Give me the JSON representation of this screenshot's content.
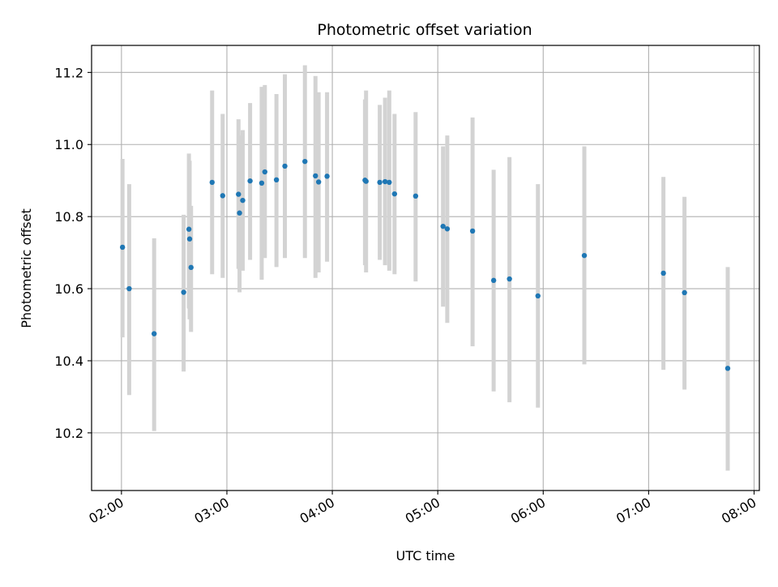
{
  "chart_data": {
    "type": "scatter",
    "title": "Photometric offset variation",
    "xlabel": "UTC time",
    "ylabel": "Photometric offset",
    "x_unit": "UTC time",
    "xlim": [
      "01:43",
      "08:03"
    ],
    "ylim": [
      10.04,
      11.275
    ],
    "grid": true,
    "marker_color": "#1f77b4",
    "errorbar_color": "#d3d3d3",
    "x_ticks": [
      "02:00",
      "03:00",
      "04:00",
      "05:00",
      "06:00",
      "07:00",
      "08:00"
    ],
    "y_ticks": [
      "10.2",
      "10.4",
      "10.6",
      "10.8",
      "11.0",
      "11.2"
    ],
    "points": [
      {
        "x": "02:00:36",
        "y": 10.715,
        "lo": 10.465,
        "hi": 10.96
      },
      {
        "x": "02:04:24",
        "y": 10.6,
        "lo": 10.305,
        "hi": 10.89
      },
      {
        "x": "02:18:36",
        "y": 10.475,
        "lo": 10.205,
        "hi": 10.74
      },
      {
        "x": "02:35:24",
        "y": 10.59,
        "lo": 10.37,
        "hi": 10.805
      },
      {
        "x": "02:38:24",
        "y": 10.765,
        "lo": 10.545,
        "hi": 10.975
      },
      {
        "x": "02:38:48",
        "y": 10.738,
        "lo": 10.515,
        "hi": 10.955
      },
      {
        "x": "02:39:36",
        "y": 10.659,
        "lo": 10.48,
        "hi": 10.83
      },
      {
        "x": "02:51:36",
        "y": 10.895,
        "lo": 10.64,
        "hi": 11.15
      },
      {
        "x": "02:57:36",
        "y": 10.858,
        "lo": 10.63,
        "hi": 11.085
      },
      {
        "x": "03:06:36",
        "y": 10.862,
        "lo": 10.655,
        "hi": 11.07
      },
      {
        "x": "03:07:12",
        "y": 10.81,
        "lo": 10.59,
        "hi": 11.025
      },
      {
        "x": "03:09:00",
        "y": 10.845,
        "lo": 10.65,
        "hi": 11.04
      },
      {
        "x": "03:13:12",
        "y": 10.899,
        "lo": 10.68,
        "hi": 11.115
      },
      {
        "x": "03:19:48",
        "y": 10.893,
        "lo": 10.625,
        "hi": 11.16
      },
      {
        "x": "03:21:36",
        "y": 10.924,
        "lo": 10.685,
        "hi": 11.165
      },
      {
        "x": "03:28:12",
        "y": 10.902,
        "lo": 10.66,
        "hi": 11.14
      },
      {
        "x": "03:33:00",
        "y": 10.94,
        "lo": 10.685,
        "hi": 11.195
      },
      {
        "x": "03:44:24",
        "y": 10.953,
        "lo": 10.685,
        "hi": 11.22
      },
      {
        "x": "03:50:24",
        "y": 10.913,
        "lo": 10.63,
        "hi": 11.19
      },
      {
        "x": "03:52:12",
        "y": 10.896,
        "lo": 10.645,
        "hi": 11.145
      },
      {
        "x": "03:57:00",
        "y": 10.912,
        "lo": 10.675,
        "hi": 11.145
      },
      {
        "x": "04:18:36",
        "y": 10.901,
        "lo": 10.665,
        "hi": 11.125
      },
      {
        "x": "04:19:12",
        "y": 10.898,
        "lo": 10.645,
        "hi": 11.15
      },
      {
        "x": "04:27:00",
        "y": 10.895,
        "lo": 10.68,
        "hi": 11.11
      },
      {
        "x": "04:30:00",
        "y": 10.897,
        "lo": 10.665,
        "hi": 11.13
      },
      {
        "x": "04:32:24",
        "y": 10.895,
        "lo": 10.65,
        "hi": 11.15
      },
      {
        "x": "04:35:24",
        "y": 10.863,
        "lo": 10.64,
        "hi": 11.085
      },
      {
        "x": "04:47:24",
        "y": 10.857,
        "lo": 10.62,
        "hi": 11.09
      },
      {
        "x": "05:03:00",
        "y": 10.773,
        "lo": 10.55,
        "hi": 10.995
      },
      {
        "x": "05:05:24",
        "y": 10.766,
        "lo": 10.505,
        "hi": 11.025
      },
      {
        "x": "05:19:48",
        "y": 10.76,
        "lo": 10.44,
        "hi": 11.075
      },
      {
        "x": "05:31:48",
        "y": 10.623,
        "lo": 10.315,
        "hi": 10.93
      },
      {
        "x": "05:40:48",
        "y": 10.627,
        "lo": 10.285,
        "hi": 10.965
      },
      {
        "x": "05:57:00",
        "y": 10.58,
        "lo": 10.27,
        "hi": 10.89
      },
      {
        "x": "06:23:24",
        "y": 10.692,
        "lo": 10.39,
        "hi": 10.995
      },
      {
        "x": "07:08:24",
        "y": 10.643,
        "lo": 10.375,
        "hi": 10.91
      },
      {
        "x": "07:20:24",
        "y": 10.589,
        "lo": 10.32,
        "hi": 10.855
      },
      {
        "x": "07:45:00",
        "y": 10.379,
        "lo": 10.095,
        "hi": 10.66
      }
    ]
  }
}
